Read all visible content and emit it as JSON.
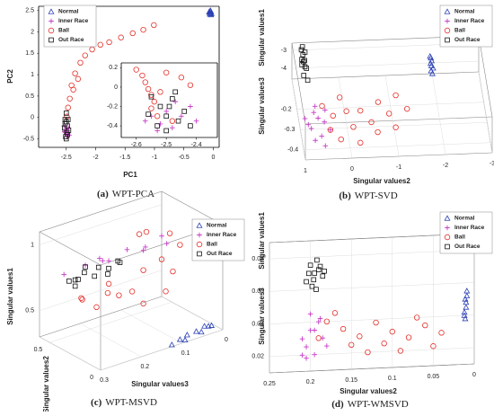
{
  "chart_data": [
    {
      "type": "scatter",
      "caption_label": "(a)",
      "caption": "WPT-PCA",
      "xlabel": "PC1",
      "ylabel": "PC2",
      "legend": "upper left",
      "grid": false,
      "xlim": [
        -2.97,
        0.1
      ],
      "ylim": [
        -0.7,
        2.6
      ],
      "xticks": [
        -2.5,
        -2,
        -1.5,
        -1,
        -0.5,
        0
      ],
      "yticks": [
        -0.5,
        0,
        0.5,
        1,
        1.5,
        2,
        2.5
      ],
      "series": [
        {
          "name": "Normal",
          "color": "#2a3fb5",
          "marker": "triangle",
          "x": [
            -0.06,
            -0.04,
            -0.05,
            -0.03,
            -0.07,
            -0.05,
            -0.04,
            -0.06
          ],
          "y": [
            2.42,
            2.48,
            2.45,
            2.43,
            2.47,
            2.5,
            2.4,
            2.46
          ]
        },
        {
          "name": "Inner Race",
          "color": "#c83cc8",
          "marker": "plus",
          "x": [
            -2.52,
            -2.48,
            -2.5,
            -2.46,
            -2.54,
            -2.49,
            -2.47,
            -2.51,
            -2.45,
            -2.53
          ],
          "y": [
            -0.35,
            -0.3,
            -0.4,
            -0.25,
            -0.2,
            -0.45,
            -0.38,
            -0.28,
            -0.42,
            -0.33
          ]
        },
        {
          "name": "Ball",
          "color": "#e4302a",
          "marker": "circle",
          "x": [
            -2.49,
            -2.47,
            -2.44,
            -2.41,
            -2.38,
            -2.35,
            -2.3,
            -2.26,
            -2.18,
            -2.06,
            -1.92,
            -1.77,
            -1.57,
            -1.37,
            -1.19,
            -1.01
          ],
          "y": [
            0.02,
            0.23,
            0.44,
            0.75,
            0.65,
            1.03,
            0.9,
            1.28,
            1.45,
            1.59,
            1.7,
            1.76,
            1.87,
            1.97,
            2.05,
            2.16
          ]
        },
        {
          "name": "Out Race",
          "color": "#111111",
          "marker": "square",
          "x": [
            -2.5,
            -2.48,
            -2.52,
            -2.49,
            -2.51,
            -2.47,
            -2.5,
            -2.53,
            -2.46,
            -2.5,
            -2.48,
            -2.52
          ],
          "y": [
            -0.1,
            -0.2,
            -0.15,
            -0.35,
            -0.45,
            -0.05,
            -0.5,
            -0.25,
            -0.3,
            0.1,
            -0.4,
            -0.05
          ]
        }
      ]
    },
    {
      "type": "scatter",
      "grid": false,
      "xlim": [
        -2.65,
        -2.33
      ],
      "ylim": [
        -0.52,
        0.25
      ],
      "xticks": [
        -2.6,
        -2.5,
        -2.4
      ],
      "yticks": [
        -0.4,
        -0.2,
        0,
        0.2
      ],
      "series": [
        {
          "name": "Inner Race",
          "color": "#c83cc8",
          "marker": "plus",
          "x": [
            -2.55,
            -2.52,
            -2.5,
            -2.48,
            -2.45,
            -2.42,
            -2.53,
            -2.47,
            -2.4,
            -2.57
          ],
          "y": [
            -0.3,
            -0.38,
            -0.25,
            -0.42,
            -0.3,
            -0.2,
            -0.45,
            -0.15,
            -0.35,
            -0.35
          ]
        },
        {
          "name": "Ball",
          "color": "#e4302a",
          "marker": "circle",
          "x": [
            -2.6,
            -2.58,
            -2.57,
            -2.56,
            -2.55,
            -2.54,
            -2.55,
            -2.53,
            -2.5,
            -2.45,
            -2.52,
            -2.48,
            -2.42
          ],
          "y": [
            0.18,
            0.12,
            0.05,
            -0.02,
            -0.08,
            -0.15,
            -0.22,
            -0.3,
            0.15,
            0.1,
            -0.05,
            -0.35,
            0.02
          ]
        },
        {
          "name": "Out Race",
          "color": "#111111",
          "marker": "square",
          "x": [
            -2.55,
            -2.52,
            -2.5,
            -2.48,
            -2.46,
            -2.44,
            -2.5,
            -2.53,
            -2.47,
            -2.42,
            -2.56,
            -2.49
          ],
          "y": [
            -0.1,
            -0.2,
            -0.3,
            -0.12,
            -0.35,
            -0.25,
            -0.45,
            -0.4,
            -0.05,
            -0.4,
            -0.28,
            -0.2
          ]
        }
      ]
    },
    {
      "type": "scatter3d",
      "caption_label": "(b)",
      "caption": "WPT-SVD",
      "xlabel": "Singular values2",
      "ylabel": "Singular values3",
      "zlabel": "Singular values1",
      "legend": "upper right",
      "grid": true,
      "xlim": [
        1,
        -3
      ],
      "ylim": [
        -0.45,
        -0.05
      ],
      "zlim": [
        -4.6,
        -2.6
      ],
      "xticks": [
        1,
        0,
        -1,
        -2,
        -3
      ],
      "yticks": [
        -0.4,
        -0.3,
        -0.2
      ],
      "zticks": [
        -4,
        -3
      ],
      "series": [
        {
          "name": "Normal",
          "color": "#2a3fb5",
          "marker": "triangle",
          "x": [
            -1.9,
            -1.92,
            -1.88,
            -1.91,
            -1.9,
            -1.89,
            -1.93,
            -1.9
          ],
          "y": [
            -0.17,
            -0.15,
            -0.19,
            -0.14,
            -0.2,
            -0.16,
            -0.18,
            -0.13
          ],
          "z": [
            -2.8,
            -2.75,
            -2.85,
            -2.7,
            -2.9,
            -2.78,
            -2.82,
            -2.72
          ]
        },
        {
          "name": "Inner Race",
          "color": "#c83cc8",
          "marker": "plus",
          "x": [
            0.9,
            0.8,
            0.7,
            0.6,
            0.5,
            0.4,
            0.75,
            0.65,
            0.55,
            0.85,
            0.45,
            0.62
          ],
          "y": [
            -0.3,
            -0.35,
            -0.28,
            -0.38,
            -0.32,
            -0.36,
            -0.4,
            -0.25,
            -0.42,
            -0.33,
            -0.27,
            -0.3
          ],
          "z": [
            -4,
            -4,
            -3.9,
            -4.1,
            -4,
            -4,
            -4.1,
            -3.9,
            -4.2,
            -4,
            -3.9,
            -4
          ]
        },
        {
          "name": "Ball",
          "color": "#e4302a",
          "marker": "circle",
          "x": [
            0.5,
            0.3,
            0.1,
            -0.1,
            -0.3,
            -0.5,
            -0.7,
            -0.9,
            -1.1,
            -1.3,
            0.2,
            -0.2,
            -0.6,
            0.4,
            -1.0,
            0.0
          ],
          "y": [
            -0.25,
            -0.3,
            -0.22,
            -0.35,
            -0.28,
            -0.33,
            -0.25,
            -0.3,
            -0.22,
            -0.28,
            -0.4,
            -0.42,
            -0.38,
            -0.36,
            -0.36,
            -0.28
          ],
          "z": [
            -3.9,
            -3.9,
            -3.8,
            -4,
            -3.9,
            -4,
            -3.8,
            -3.9,
            -3.8,
            -3.9,
            -4.1,
            -4.1,
            -4,
            -4,
            -4,
            -3.9
          ]
        },
        {
          "name": "Out Race",
          "color": "#111111",
          "marker": "square",
          "x": [
            0.8,
            0.78,
            0.82,
            0.76,
            0.84,
            0.79,
            0.81,
            0.77,
            0.83,
            0.8,
            0.75,
            0.85
          ],
          "y": [
            -0.1,
            -0.12,
            -0.08,
            -0.15,
            -0.18,
            -0.07,
            -0.13,
            -0.2,
            -0.11,
            -0.16,
            -0.09,
            -0.14
          ],
          "z": [
            -2.7,
            -2.8,
            -2.65,
            -2.9,
            -2.95,
            -2.6,
            -2.75,
            -3.0,
            -2.85,
            -2.7,
            -2.68,
            -2.8
          ]
        }
      ]
    },
    {
      "type": "scatter3d",
      "caption_label": "(c)",
      "caption": "WPT-MSVD",
      "xlabel": "Singular values3",
      "ylabel": "Singular values2",
      "zlabel": "Singular values1",
      "legend": "upper right",
      "grid": true,
      "xlim": [
        0.3,
        0
      ],
      "ylim": [
        0,
        0.6
      ],
      "zlim": [
        0.3,
        1.1
      ],
      "xticks": [
        0.3,
        0.2,
        0.1,
        0
      ],
      "yticks": [
        0,
        0.5
      ],
      "zticks": [
        0.5,
        1
      ],
      "series": [
        {
          "name": "Normal",
          "color": "#2a3fb5",
          "marker": "triangle",
          "x": [
            0.1,
            0.08,
            0.06,
            0.05,
            0.03,
            0.02,
            0.09,
            0.04,
            0.12
          ],
          "y": [
            0.02,
            0.03,
            0.02,
            0.01,
            0.02,
            0.03,
            0.01,
            0.02,
            0.02
          ],
          "z": [
            0.32,
            0.33,
            0.34,
            0.33,
            0.35,
            0.34,
            0.31,
            0.36,
            0.3
          ]
        },
        {
          "name": "Inner Race",
          "color": "#c83cc8",
          "marker": "plus",
          "x": [
            0.29,
            0.25,
            0.2,
            0.15,
            0.1,
            0.07,
            0.18,
            0.12,
            0.22,
            0.05
          ],
          "y": [
            0.4,
            0.35,
            0.38,
            0.34,
            0.36,
            0.32,
            0.4,
            0.3,
            0.33,
            0.35
          ],
          "z": [
            0.85,
            0.9,
            0.87,
            0.92,
            0.88,
            0.95,
            0.84,
            0.9,
            0.93,
            0.86
          ]
        },
        {
          "name": "Ball",
          "color": "#e4302a",
          "marker": "circle",
          "x": [
            0.27,
            0.24,
            0.2,
            0.16,
            0.12,
            0.08,
            0.05,
            0.1,
            0.14,
            0.18,
            0.22,
            0.06,
            0.03,
            0.09,
            0.26,
            0.11
          ],
          "y": [
            0.3,
            0.28,
            0.32,
            0.25,
            0.3,
            0.28,
            0.32,
            0.35,
            0.22,
            0.3,
            0.25,
            0.25,
            0.3,
            0.2,
            0.35,
            0.38
          ],
          "z": [
            0.68,
            0.6,
            0.72,
            0.65,
            0.75,
            0.8,
            0.95,
            1.0,
            0.55,
            0.62,
            0.7,
            0.7,
            0.85,
            0.6,
            0.66,
            0.98
          ]
        },
        {
          "name": "Out Race",
          "color": "#111111",
          "marker": "square",
          "x": [
            0.29,
            0.27,
            0.25,
            0.23,
            0.21,
            0.19,
            0.17,
            0.28,
            0.24,
            0.2,
            0.16,
            0.26
          ],
          "y": [
            0.35,
            0.37,
            0.36,
            0.34,
            0.38,
            0.36,
            0.35,
            0.33,
            0.39,
            0.33,
            0.37,
            0.38
          ],
          "z": [
            0.82,
            0.8,
            0.84,
            0.8,
            0.83,
            0.81,
            0.85,
            0.78,
            0.86,
            0.79,
            0.82,
            0.79
          ]
        }
      ]
    },
    {
      "type": "scatter3d",
      "caption_label": "(d)",
      "caption": "WPT-WMSVD",
      "xlabel": "Singular values2",
      "ylabel": "Singular values3",
      "zlabel": "Singular values1",
      "legend": "upper right",
      "grid": true,
      "xlim": [
        0.25,
        0
      ],
      "ylim": [
        0.01,
        0.09
      ],
      "xticks": [
        0.25,
        0.2,
        0.15,
        0.1,
        0.05,
        0
      ],
      "yticks": [
        0.02,
        0.04,
        0.06,
        0.08
      ],
      "series": [
        {
          "name": "Normal",
          "color": "#2a3fb5",
          "marker": "triangle",
          "x": [
            0.012,
            0.01,
            0.011,
            0.009,
            0.012,
            0.01,
            0.011,
            0.009
          ],
          "y": [
            0.04,
            0.045,
            0.05,
            0.055,
            0.042,
            0.048,
            0.038,
            0.052
          ]
        },
        {
          "name": "Inner Race",
          "color": "#c83cc8",
          "marker": "plus",
          "x": [
            0.21,
            0.205,
            0.2,
            0.195,
            0.19,
            0.185,
            0.2,
            0.21,
            0.18,
            0.195,
            0.205,
            0.188
          ],
          "y": [
            0.03,
            0.025,
            0.035,
            0.02,
            0.04,
            0.03,
            0.045,
            0.02,
            0.025,
            0.035,
            0.018,
            0.042
          ]
        },
        {
          "name": "Ball",
          "color": "#e4302a",
          "marker": "circle",
          "x": [
            0.18,
            0.16,
            0.14,
            0.12,
            0.1,
            0.08,
            0.06,
            0.04,
            0.15,
            0.13,
            0.11,
            0.09,
            0.17,
            0.07,
            0.05,
            0.19
          ],
          "y": [
            0.04,
            0.035,
            0.03,
            0.038,
            0.032,
            0.028,
            0.035,
            0.03,
            0.025,
            0.02,
            0.025,
            0.02,
            0.045,
            0.04,
            0.022,
            0.03
          ]
        },
        {
          "name": "Out Race",
          "color": "#111111",
          "marker": "square",
          "x": [
            0.2,
            0.195,
            0.19,
            0.205,
            0.185,
            0.198,
            0.192,
            0.188,
            0.202,
            0.196,
            0.183,
            0.193
          ],
          "y": [
            0.075,
            0.07,
            0.072,
            0.065,
            0.068,
            0.062,
            0.078,
            0.074,
            0.07,
            0.066,
            0.071,
            0.06
          ]
        }
      ]
    }
  ]
}
